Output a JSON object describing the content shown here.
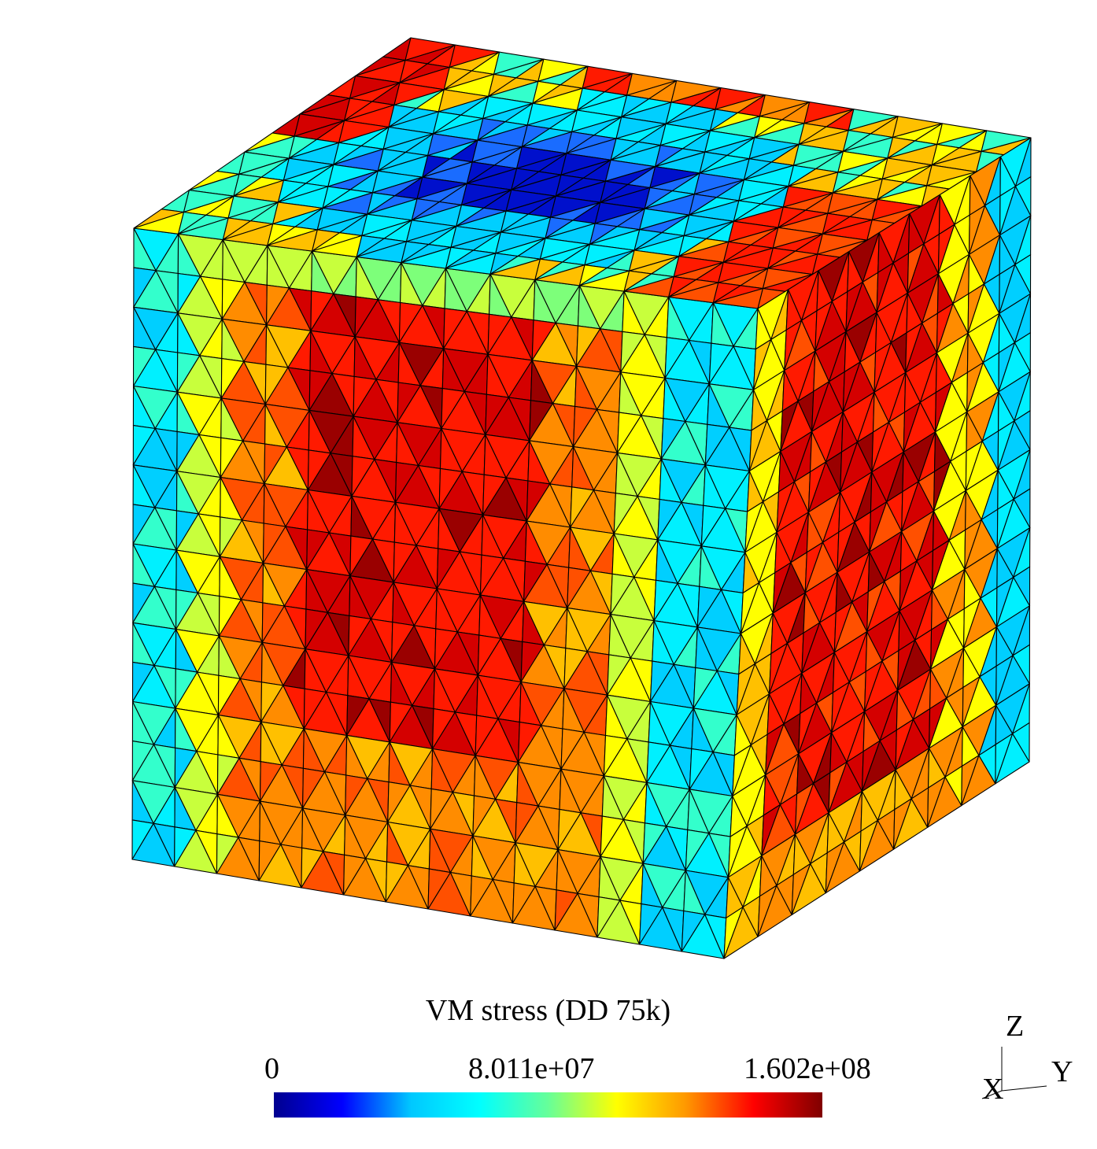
{
  "legend": {
    "title": "VM stress (DD 75k)",
    "min_label": "0",
    "mid_label": "8.011e+07",
    "max_label": "1.602e+08",
    "range": [
      0,
      160200000
    ],
    "colormap": [
      "#00008f",
      "#0000ff",
      "#00c8ff",
      "#00ffff",
      "#66ff99",
      "#ffff00",
      "#ff9900",
      "#ff0000",
      "#800000"
    ]
  },
  "axes": {
    "x": "X",
    "y": "Y",
    "z": "Z"
  },
  "mesh_colors": {
    "dark_blue": "#0010cc",
    "blue": "#1a6cff",
    "light_blue": "#00cfff",
    "cyan": "#00f0ff",
    "aqua_green": "#33ffcc",
    "green": "#7dff7a",
    "yellow_green": "#c8ff3c",
    "yellow": "#ffff00",
    "orange_yellow": "#ffc000",
    "orange": "#ff8c00",
    "red_orange": "#ff5000",
    "red": "#ff1a00",
    "dark_red": "#d40000",
    "maroon": "#9a0000",
    "edge": "#000000"
  }
}
